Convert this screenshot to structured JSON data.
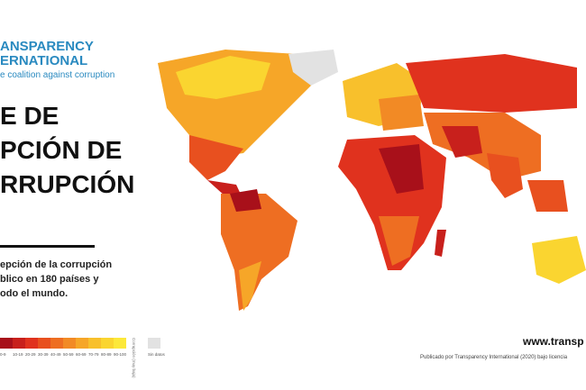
{
  "header": {
    "logo_line1": "ANSPARENCY",
    "logo_line2": "ERNATIONAL",
    "logo_tagline": "e coalition against corruption"
  },
  "title": {
    "lines": [
      "E DE",
      "PCIÓN DE",
      "RRUPCIÓN"
    ]
  },
  "description": {
    "lines": [
      "epción de la corrupción",
      "blico en 180 países y",
      "odo el mundo."
    ]
  },
  "legend": {
    "items": [
      {
        "label": "0-9",
        "color": "#a8101a"
      },
      {
        "label": "10-19",
        "color": "#c8201c"
      },
      {
        "label": "20-29",
        "color": "#e0321e"
      },
      {
        "label": "30-39",
        "color": "#e8501f"
      },
      {
        "label": "40-49",
        "color": "#ee6e22"
      },
      {
        "label": "50-59",
        "color": "#f28a25"
      },
      {
        "label": "60-69",
        "color": "#f6a628"
      },
      {
        "label": "70-79",
        "color": "#f8c02c"
      },
      {
        "label": "80-89",
        "color": "#fad530"
      },
      {
        "label": "90-100",
        "color": "#fce83a"
      }
    ],
    "scale_note": "Corrupción (muy baja)",
    "no_data": "Sin datos"
  },
  "footer": {
    "url": "www.transp",
    "credit": "Publicado por Transparency International (2020) bajo licencia"
  }
}
